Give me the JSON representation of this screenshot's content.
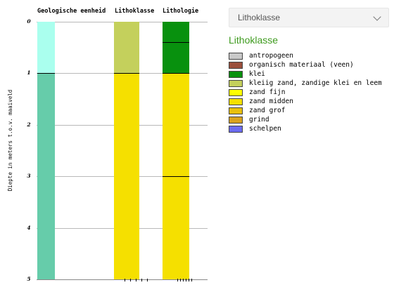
{
  "profile": {
    "axis_title": "Diepte in meters t.o.v. maaiveld",
    "depth_range_m": [
      0,
      5
    ],
    "ticks": [
      "0",
      "1",
      "2",
      "3",
      "4",
      "5"
    ],
    "columns": [
      {
        "header": "Geologische eenheid",
        "layers": [
          {
            "from_m": 0,
            "to_m": 1,
            "color": "#aaffee"
          },
          {
            "from_m": 1,
            "to_m": 5,
            "color": "#66ccaa"
          }
        ]
      },
      {
        "header": "Lithoklasse",
        "layers": [
          {
            "from_m": 0,
            "to_m": 1,
            "color": "#c4d05c",
            "class": "kleiig zand, zandige klei en leem"
          },
          {
            "from_m": 1,
            "to_m": 5,
            "color": "#f5e000",
            "class": "zand midden"
          }
        ]
      },
      {
        "header": "Lithologie",
        "layers": [
          {
            "from_m": 0,
            "to_m": 0.4,
            "color": "#08910e"
          },
          {
            "from_m": 0.4,
            "to_m": 1,
            "color": "#08910e"
          },
          {
            "from_m": 1,
            "to_m": 3,
            "color": "#f5e000"
          },
          {
            "from_m": 3,
            "to_m": 5,
            "color": "#f5e000"
          }
        ]
      }
    ]
  },
  "panel": {
    "dropdown_selected": "Lithoklasse",
    "legend_title": "Lithoklasse",
    "legend": [
      {
        "label": "antropogeen",
        "color": "#c8c8c8"
      },
      {
        "label": "organisch materiaal (veen)",
        "color": "#9b4f3c"
      },
      {
        "label": "klei",
        "color": "#08910e"
      },
      {
        "label": "kleiig zand, zandige klei en leem",
        "color": "#c4d05c"
      },
      {
        "label": "zand fijn",
        "color": "#ffff00"
      },
      {
        "label": "zand midden",
        "color": "#f5e000"
      },
      {
        "label": "zand grof",
        "color": "#e8c00e"
      },
      {
        "label": "grind",
        "color": "#d9a21e"
      },
      {
        "label": "schelpen",
        "color": "#6b6bf0"
      }
    ]
  }
}
